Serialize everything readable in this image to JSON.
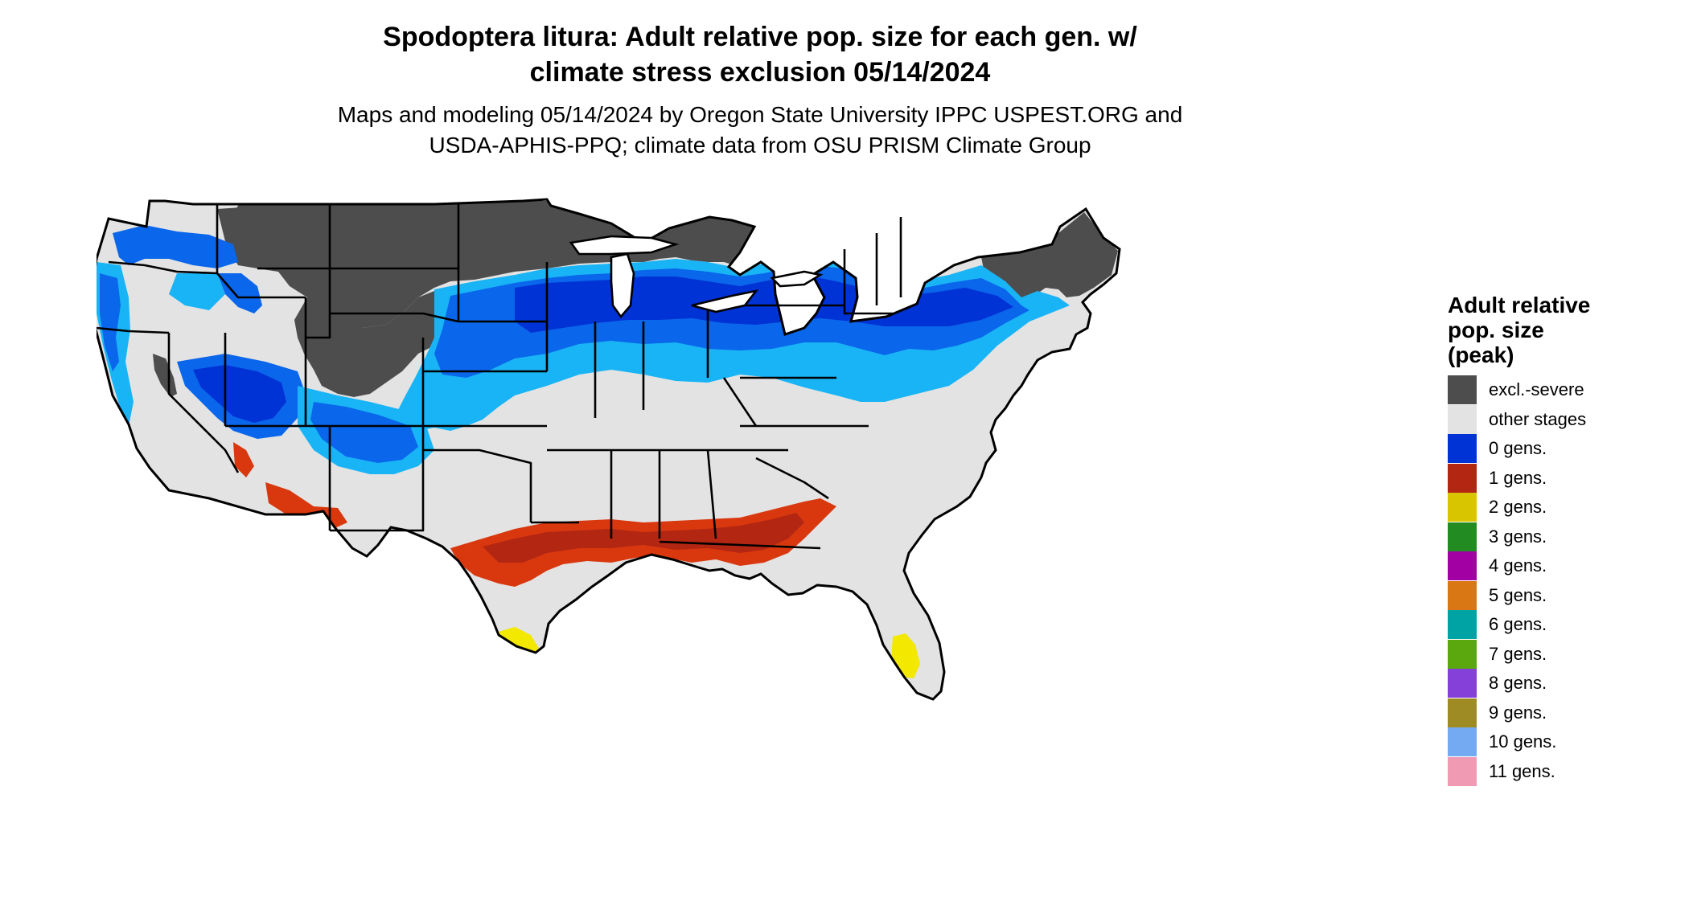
{
  "title": {
    "line1": "Spodoptera litura: Adult relative pop. size for each gen. w/",
    "line2": "climate stress exclusion 05/14/2024"
  },
  "subtitle": {
    "line1": "Maps and modeling 05/14/2024 by Oregon State University IPPC USPEST.ORG and",
    "line2": "USDA-APHIS-PPQ; climate data from OSU PRISM Climate Group"
  },
  "legend": {
    "title_line1": "Adult relative",
    "title_line2": "pop. size",
    "title_line3": "(peak)",
    "items": [
      {
        "label": "excl.-severe",
        "color": "#4d4d4d"
      },
      {
        "label": "other stages",
        "color": "#e3e3e3"
      },
      {
        "label": "0 gens.",
        "color": "#0033d6"
      },
      {
        "label": "1 gens.",
        "color": "#b32612"
      },
      {
        "label": "2 gens.",
        "color": "#d9c400"
      },
      {
        "label": "3 gens.",
        "color": "#228b22"
      },
      {
        "label": "4 gens.",
        "color": "#a300a3"
      },
      {
        "label": "5 gens.",
        "color": "#d97714"
      },
      {
        "label": "6 gens.",
        "color": "#00a3a3"
      },
      {
        "label": "7 gens.",
        "color": "#5aa80e"
      },
      {
        "label": "8 gens.",
        "color": "#8440d9"
      },
      {
        "label": "9 gens.",
        "color": "#9e8b24"
      },
      {
        "label": "10 gens.",
        "color": "#74aaf2"
      },
      {
        "label": "11 gens.",
        "color": "#f09ab4"
      }
    ]
  },
  "map_colors": {
    "background": "#e3e3e3",
    "excluded": "#4d4d4d",
    "gen0_dark": "#0033d6",
    "gen0_mid": "#0a66ea",
    "gen0_light": "#19b4f5",
    "gen1": "#d9380f",
    "gen1_dark": "#b32612",
    "gen2": "#f2e800",
    "gen3": "#228b22",
    "border": "#000000"
  }
}
